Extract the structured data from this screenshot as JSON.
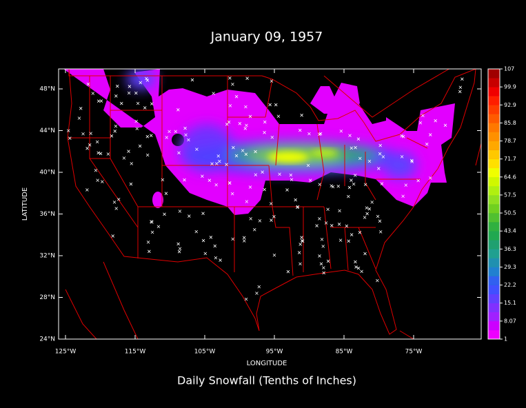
{
  "map": {
    "title": "January 09, 1957",
    "xlabel": "LONGITUDE",
    "ylabel": "LATITUDE",
    "caption": "Daily Snowfall (Tenths of Inches)",
    "xticks": [
      "125°W",
      "115°W",
      "105°W",
      "95°W",
      "85°W",
      "75°W"
    ],
    "yticks": [
      "24°N",
      "28°N",
      "32°N",
      "36°N",
      "40°N",
      "44°N",
      "48°N"
    ],
    "colorbar": {
      "labels": [
        1,
        8.07,
        15.1,
        22.2,
        29.3,
        36.3,
        43.4,
        50.5,
        57.5,
        64.6,
        71.7,
        78.7,
        85.8,
        92.9,
        99.9,
        107
      ],
      "colors": [
        "#ee00ff",
        "#cc00ff",
        "#a020ff",
        "#8030ff",
        "#6040ff",
        "#4050ff",
        "#3060f0",
        "#2080d0",
        "#2090b0",
        "#20a090",
        "#20a070",
        "#20a850",
        "#30b040",
        "#50c030",
        "#70d020",
        "#90e020",
        "#b0f010",
        "#d0f800",
        "#f0ff00",
        "#ffe000",
        "#ffc800",
        "#ffa800",
        "#ff9000",
        "#ff7800",
        "#ff5a00",
        "#ff3c00",
        "#ff1e00",
        "#f00000",
        "#c80000",
        "#a00000"
      ]
    }
  }
}
